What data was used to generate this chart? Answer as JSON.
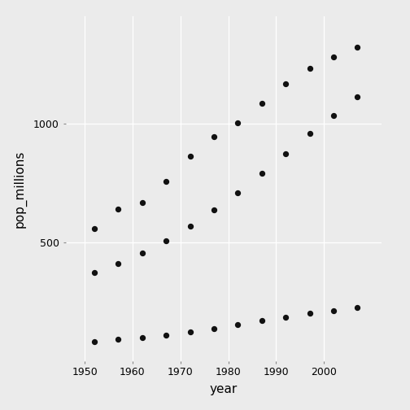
{
  "years": [
    1952,
    1957,
    1962,
    1967,
    1972,
    1977,
    1982,
    1987,
    1992,
    1997,
    2002,
    2007
  ],
  "china": [
    556.3,
    637.4,
    665.8,
    754.6,
    862.0,
    943.5,
    1000.3,
    1084.0,
    1165.0,
    1230.1,
    1280.4,
    1318.7
  ],
  "india": [
    372.0,
    409.0,
    454.0,
    506.0,
    567.0,
    634.0,
    708.0,
    788.0,
    872.0,
    959.0,
    1034.2,
    1110.4
  ],
  "indonesia": [
    82.1,
    90.1,
    99.0,
    109.3,
    121.3,
    136.7,
    153.3,
    169.1,
    184.8,
    199.3,
    211.1,
    223.5
  ],
  "background_color": "#ebebeb",
  "panel_color": "#ebebeb",
  "point_color": "#111111",
  "point_size": 18,
  "grid_color": "#ffffff",
  "xlabel": "year",
  "ylabel": "pop_millions",
  "yticks": [
    500,
    1000
  ],
  "xticks": [
    1950,
    1960,
    1970,
    1980,
    1990,
    2000
  ],
  "xlim": [
    1946,
    2012
  ],
  "ylim": [
    0,
    1450
  ]
}
